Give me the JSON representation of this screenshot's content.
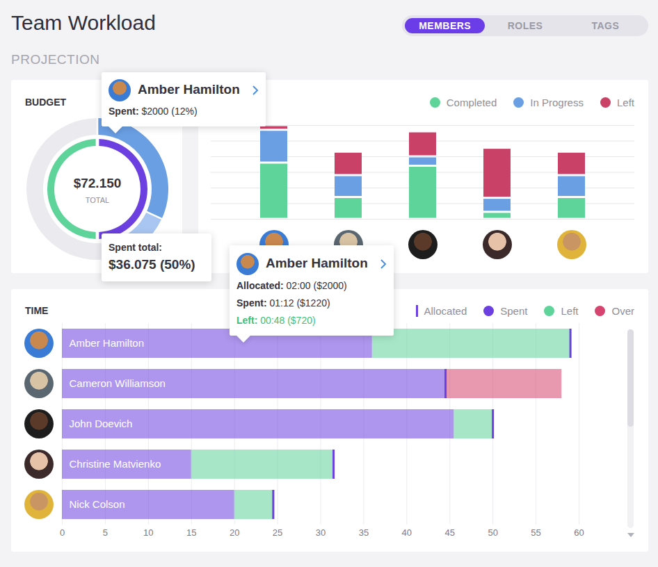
{
  "header": {
    "title": "Team Workload",
    "tabs": [
      "MEMBERS",
      "ROLES",
      "TAGS"
    ],
    "active_tab": "MEMBERS",
    "section": "PROJECTION"
  },
  "chart_data": [
    {
      "type": "pie",
      "title": "BUDGET",
      "center_value": "$72.150",
      "center_label": "TOTAL",
      "rings": [
        {
          "values": [
            50,
            50
          ],
          "colors": [
            "#6c3fe0",
            "#5ed39a"
          ]
        },
        {
          "values": [
            32,
            14,
            2,
            52
          ],
          "colors": [
            "#6a9fe4",
            "#a9c6f2",
            "#f4a3bb",
            "#ebebef"
          ]
        }
      ]
    },
    {
      "type": "bar",
      "stacked": true,
      "categories": [
        null,
        null,
        null,
        null,
        null
      ],
      "series": [
        {
          "name": "Completed",
          "color": "#5ed39a",
          "values": [
            3.6,
            1.4,
            3.4,
            0.45,
            1.4
          ]
        },
        {
          "name": "In Progress",
          "color": "#6a9fe4",
          "values": [
            2.1,
            1.4,
            0.6,
            0.9,
            1.4
          ]
        },
        {
          "name": "Left",
          "color": "#c94166",
          "values": [
            0.3,
            1.5,
            1.6,
            3.2,
            1.5
          ]
        }
      ],
      "ylim": [
        0,
        6
      ],
      "yticks": [
        0,
        1,
        2,
        3,
        4,
        5,
        6
      ],
      "grid": true,
      "tick_labels": false,
      "legend": "top-right"
    },
    {
      "type": "bar",
      "title": "TIME",
      "orientation": "horizontal",
      "stacked": true,
      "categories": [
        "Amber Hamilton",
        "Cameron Williamson",
        "John Doevich",
        "Christine Matvienko",
        "Nick Colson"
      ],
      "series": [
        {
          "name": "Allocated",
          "type": "tick",
          "color": "#6c3fe0",
          "values": [
            59,
            44.5,
            50,
            31.5,
            24.5
          ]
        },
        {
          "name": "Spent",
          "color": "#6c3fe0",
          "values": [
            36,
            44.5,
            45.5,
            15,
            20
          ]
        },
        {
          "name": "Left",
          "color": "#5ed39a",
          "values": [
            23,
            0,
            4.5,
            16.5,
            4.5
          ]
        },
        {
          "name": "Over",
          "color": "#d6456f",
          "values": [
            0,
            13.5,
            0,
            0,
            0
          ]
        }
      ],
      "xlim": [
        0,
        60
      ],
      "xticks": [
        0,
        5,
        10,
        15,
        20,
        25,
        30,
        35,
        40,
        45,
        50,
        55,
        60
      ],
      "grid": true,
      "tick_labels": "x",
      "legend": "top-right"
    }
  ],
  "tooltips": [
    {
      "name": "Amber Hamilton",
      "lines": [
        {
          "label": "Spent:",
          "value": "$2000 (12%)"
        }
      ]
    },
    {
      "lines": [
        {
          "label": "Spent total:",
          "value": "$36.075 (50%)"
        }
      ]
    },
    {
      "name": "Amber Hamilton",
      "lines": [
        {
          "label": "Allocated:",
          "value": "02:00 ($2000)"
        },
        {
          "label": "Spent:",
          "value": "01:12 ($1220)"
        },
        {
          "label": "Left:",
          "value": "00:48 ($720)",
          "color": "#3cbf7a"
        }
      ]
    }
  ]
}
